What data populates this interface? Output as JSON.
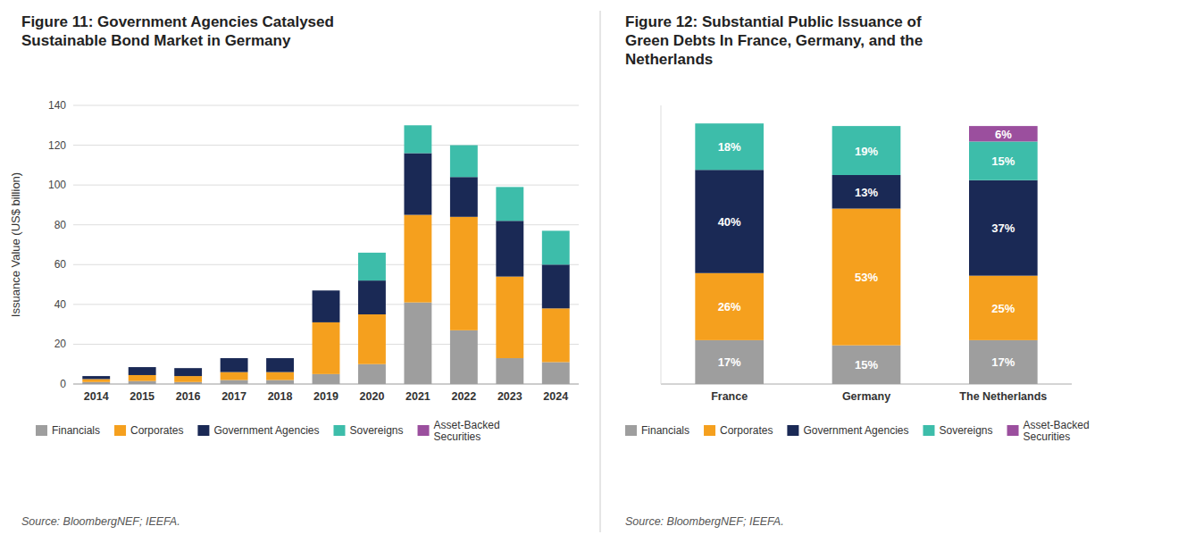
{
  "chart_data": [
    {
      "type": "bar",
      "stacked": true,
      "title": "Figure 11: Government Agencies Catalysed\nSustainable Bond Market in Germany",
      "y_label": "Issuance Value (US$ billion)",
      "source": "Source: BloombergNEF; IEEFA.",
      "categories": [
        "2014",
        "2015",
        "2016",
        "2017",
        "2018",
        "2019",
        "2020",
        "2021",
        "2022",
        "2023",
        "2024"
      ],
      "series": [
        {
          "name": "Financials",
          "color": "#9e9e9e",
          "values": [
            1.0,
            1.5,
            1.0,
            2.0,
            2.0,
            5.0,
            10.0,
            41.0,
            27.0,
            13.0,
            11.0
          ]
        },
        {
          "name": "Corporates",
          "color": "#f5a01e",
          "values": [
            1.5,
            3.0,
            3.0,
            4.0,
            4.0,
            26.0,
            25.0,
            44.0,
            57.0,
            41.0,
            27.0
          ]
        },
        {
          "name": "Government Agencies",
          "color": "#1a2955",
          "values": [
            1.5,
            4.0,
            4.0,
            7.0,
            7.0,
            16.0,
            17.0,
            31.0,
            20.0,
            28.0,
            22.0
          ]
        },
        {
          "name": "Sovereigns",
          "color": "#3dbdaa",
          "values": [
            0.0,
            0.0,
            0.0,
            0.0,
            0.0,
            0.0,
            14.0,
            14.0,
            16.0,
            17.0,
            17.0
          ]
        },
        {
          "name": "Asset-Backed\nSecurities",
          "color": "#9b4f9e",
          "values": [
            0.0,
            0.0,
            0.0,
            0.0,
            0.0,
            0.0,
            0.0,
            0.0,
            0.0,
            0.0,
            0.0
          ]
        }
      ],
      "ylim": [
        0,
        140
      ],
      "yticks": [
        0,
        20,
        40,
        60,
        80,
        100,
        120,
        140
      ],
      "grid": true,
      "legend": "bottom"
    },
    {
      "type": "bar",
      "stacked": true,
      "title": "Figure 12: Substantial Public Issuance of\nGreen Debts In France, Germany, and the\nNetherlands",
      "source": "Source: BloombergNEF; IEEFA.",
      "categories": [
        "France",
        "Germany",
        "The Netherlands"
      ],
      "series": [
        {
          "name": "Financials",
          "color": "#9e9e9e",
          "values": [
            17,
            15,
            17
          ],
          "value_labels": [
            "17%",
            "15%",
            "17%"
          ]
        },
        {
          "name": "Corporates",
          "color": "#f5a01e",
          "values": [
            26,
            53,
            25
          ],
          "value_labels": [
            "26%",
            "53%",
            "25%"
          ]
        },
        {
          "name": "Government Agencies",
          "color": "#1a2955",
          "values": [
            40,
            13,
            37
          ],
          "value_labels": [
            "40%",
            "13%",
            "37%"
          ]
        },
        {
          "name": "Sovereigns",
          "color": "#3dbdaa",
          "values": [
            18,
            19,
            15
          ],
          "value_labels": [
            "18%",
            "19%",
            "15%"
          ]
        },
        {
          "name": "Asset-Backed\nSecurities",
          "color": "#9b4f9e",
          "values": [
            0,
            0,
            6
          ],
          "value_labels": [
            null,
            null,
            "6%"
          ]
        }
      ],
      "ylim": [
        0,
        108
      ],
      "tick_labels": "x",
      "data_labels": true,
      "grid": false,
      "legend": "bottom"
    }
  ]
}
